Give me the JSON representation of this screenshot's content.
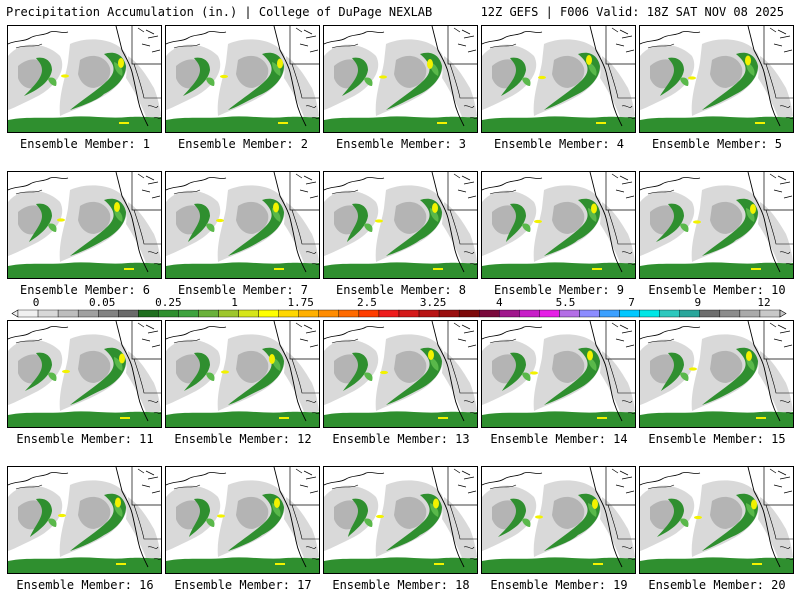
{
  "header": {
    "left": "Precipitation Accumulation (in.) | College of DuPage NEXLAB",
    "right": "12Z GEFS | F006 Valid: 18Z SAT NOV 08 2025"
  },
  "colors": {
    "land": "#ffffff",
    "coast": "#000000",
    "cloud_light": "#d9d9d9",
    "cloud_mid": "#b4b4b4",
    "precip_green": "#2f8f2f",
    "precip_green_light": "#59b84a",
    "precip_yellow": "#f2f200"
  },
  "members": [
    {
      "label": "Ensemble Member: 1"
    },
    {
      "label": "Ensemble Member: 2"
    },
    {
      "label": "Ensemble Member: 3"
    },
    {
      "label": "Ensemble Member: 4"
    },
    {
      "label": "Ensemble Member: 5"
    },
    {
      "label": "Ensemble Member: 6"
    },
    {
      "label": "Ensemble Member: 7"
    },
    {
      "label": "Ensemble Member: 8"
    },
    {
      "label": "Ensemble Member: 9"
    },
    {
      "label": "Ensemble Member: 10"
    },
    {
      "label": "Ensemble Member: 11"
    },
    {
      "label": "Ensemble Member: 12"
    },
    {
      "label": "Ensemble Member: 13"
    },
    {
      "label": "Ensemble Member: 14"
    },
    {
      "label": "Ensemble Member: 15"
    },
    {
      "label": "Ensemble Member: 16"
    },
    {
      "label": "Ensemble Member: 17"
    },
    {
      "label": "Ensemble Member: 18"
    },
    {
      "label": "Ensemble Member: 19"
    },
    {
      "label": "Ensemble Member: 20"
    }
  ],
  "colorbar": {
    "tick_labels": [
      "0",
      "0.05",
      "0.25",
      "1",
      "1.75",
      "2.5",
      "3.25",
      "4",
      "5.5",
      "7",
      "9",
      "12"
    ],
    "colors": [
      "#f0f0f0",
      "#d8d8d8",
      "#bdbdbd",
      "#a0a0a0",
      "#828282",
      "#6a6a6a",
      "#1f6f1f",
      "#2f8f2f",
      "#3fa33f",
      "#6ab13a",
      "#9ec62c",
      "#d6e51a",
      "#ffff00",
      "#ffd700",
      "#ffb000",
      "#ff8c00",
      "#ff6a00",
      "#ff3d00",
      "#ee1c1c",
      "#d41a1a",
      "#b81414",
      "#9a0f0f",
      "#7d0a0a",
      "#7a0a3c",
      "#a0188c",
      "#c81ec8",
      "#e61ee6",
      "#b46ee6",
      "#8c8cff",
      "#3ca0ff",
      "#00c8ff",
      "#00e6e6",
      "#2dc8be",
      "#2aa69b",
      "#6e6e6e",
      "#8c8c8c",
      "#aaaaaa",
      "#c8c8c8"
    ]
  }
}
